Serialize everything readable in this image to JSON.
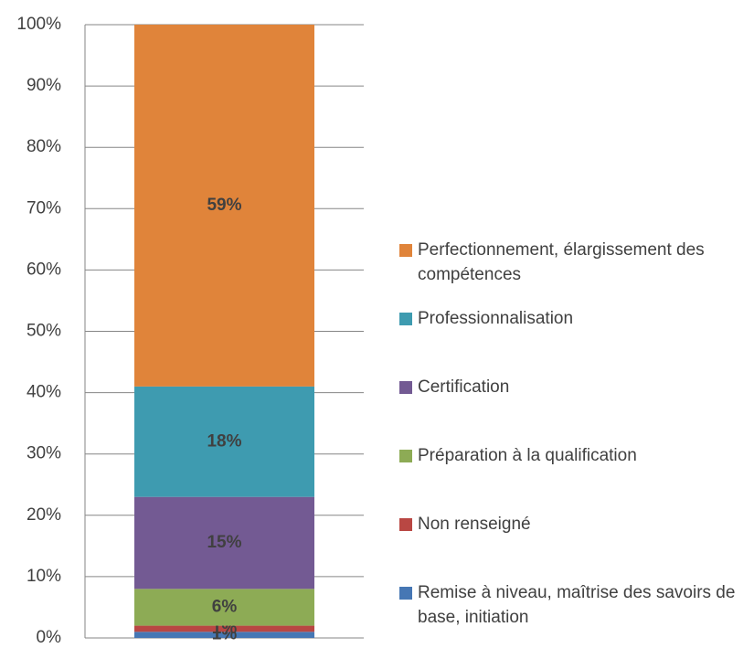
{
  "chart_data": {
    "type": "stacked_bar",
    "categories": [
      null
    ],
    "series": [
      {
        "name": "Remise à niveau, maîtrise des savoirs de base, initiation",
        "color": "#4677b4",
        "values": [
          1
        ],
        "value_labels": [
          "1%"
        ]
      },
      {
        "name": "Non renseigné",
        "color": "#b94743",
        "values": [
          1
        ],
        "value_labels": [
          "1%"
        ]
      },
      {
        "name": "Préparation à la qualification",
        "color": "#8dab55",
        "values": [
          6
        ],
        "value_labels": [
          "6%"
        ]
      },
      {
        "name": "Certification",
        "color": "#735a93",
        "values": [
          15
        ],
        "value_labels": [
          "15%"
        ]
      },
      {
        "name": "Professionnalisation",
        "color": "#3e9bb0",
        "values": [
          18
        ],
        "value_labels": [
          "18%"
        ]
      },
      {
        "name": "Perfectionnement, élargissement des compétences",
        "color": "#e0843a",
        "values": [
          59
        ],
        "value_labels": [
          "59%"
        ]
      }
    ],
    "ylim": [
      0,
      100
    ],
    "yticks": [
      {
        "value": 0,
        "label": "0%"
      },
      {
        "value": 10,
        "label": "10%"
      },
      {
        "value": 20,
        "label": "20%"
      },
      {
        "value": 30,
        "label": "30%"
      },
      {
        "value": 40,
        "label": "40%"
      },
      {
        "value": 50,
        "label": "50%"
      },
      {
        "value": 60,
        "label": "60%"
      },
      {
        "value": 70,
        "label": "70%"
      },
      {
        "value": 80,
        "label": "80%"
      },
      {
        "value": 90,
        "label": "90%"
      },
      {
        "value": 100,
        "label": "100%"
      }
    ],
    "grid": true,
    "legend": "right"
  }
}
